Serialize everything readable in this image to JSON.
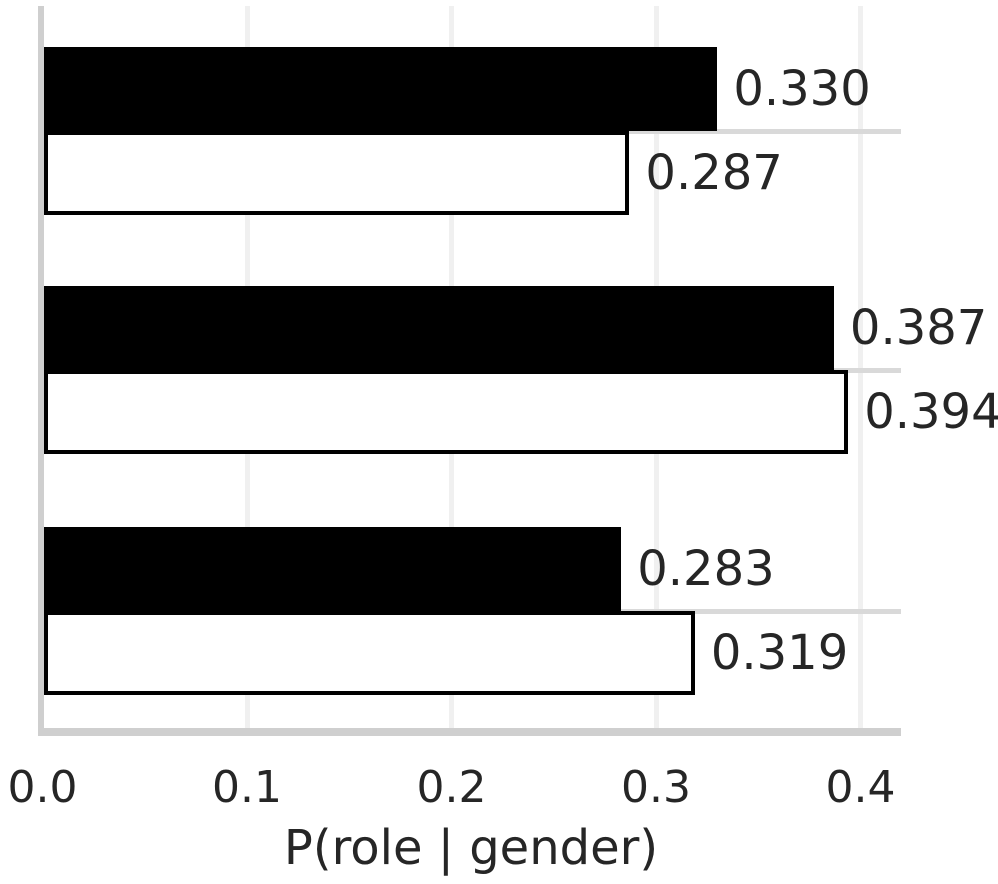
{
  "chart_data": {
    "type": "bar",
    "orientation": "horizontal",
    "title": "",
    "xlabel": "P(role | gender)",
    "ylabel": "",
    "categories": [
      "",
      "",
      ""
    ],
    "series": [
      {
        "name": "black-bars",
        "fill": "#000000",
        "edge": "#000000",
        "values": [
          0.33,
          0.387,
          0.283
        ],
        "labels": [
          "0.330",
          "0.387",
          "0.283"
        ]
      },
      {
        "name": "white-bars",
        "fill": "#ffffff",
        "edge": "#000000",
        "values": [
          0.287,
          0.394,
          0.319
        ],
        "labels": [
          "0.287",
          "0.394",
          "0.319"
        ]
      }
    ],
    "x_ticks": [
      {
        "value": 0.0,
        "label": "0.0"
      },
      {
        "value": 0.1,
        "label": "0.1"
      },
      {
        "value": 0.2,
        "label": "0.2"
      },
      {
        "value": 0.3,
        "label": "0.3"
      },
      {
        "value": 0.4,
        "label": "0.4"
      }
    ],
    "xlim": [
      0.0,
      0.42
    ],
    "grid": "both",
    "legend": "none"
  },
  "colors": {
    "background": "#ffffff",
    "text": "#262626",
    "spine": "#cfcfcf",
    "grid_vertical": "#f0f0f0",
    "grid_horizontal": "#d9d9d9",
    "bar_black": "#000000",
    "bar_white": "#ffffff",
    "bar_edge": "#000000"
  }
}
